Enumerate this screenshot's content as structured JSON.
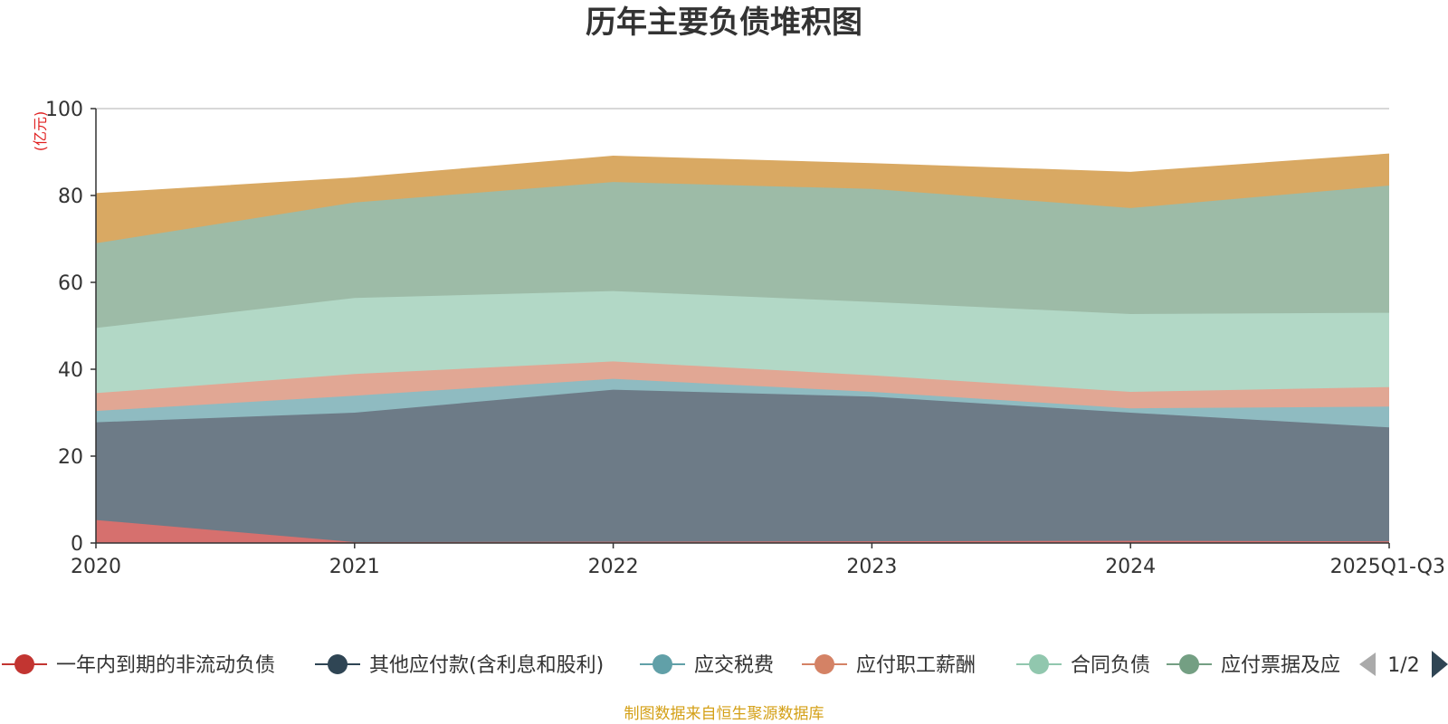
{
  "chart_data": {
    "type": "area",
    "stacked": true,
    "title": "历年主要负债堆积图",
    "unit": "(亿元)",
    "x": [
      "2020",
      "2021",
      "2022",
      "2023",
      "2024",
      "2025Q1-Q3"
    ],
    "ylim": [
      0,
      100
    ],
    "yticks": [
      0,
      20,
      40,
      60,
      80,
      100
    ],
    "grid": true,
    "legend_position": "bottom",
    "series": [
      {
        "name": "一年内到期的非流动负债",
        "color": "#c23531",
        "fill": "#d6706e",
        "values": [
          5.3,
          0.2,
          0.3,
          0.4,
          0.5,
          0.4
        ]
      },
      {
        "name": "其他应付款(含利息和股利)",
        "color": "#2f4554",
        "fill": "#6d7b87",
        "values": [
          22.5,
          29.8,
          35.0,
          33.3,
          29.5,
          26.2
        ]
      },
      {
        "name": "应交税费",
        "color": "#61a0a8",
        "fill": "#8fbbc1",
        "values": [
          2.6,
          3.9,
          2.5,
          1.1,
          1.0,
          4.8
        ]
      },
      {
        "name": "应付职工薪酬",
        "color": "#d48265",
        "fill": "#e1a794",
        "values": [
          4.1,
          5.0,
          4.0,
          3.8,
          3.8,
          4.5
        ]
      },
      {
        "name": "合同负债",
        "color": "#91c7ae",
        "fill": "#b2d8c6",
        "values": [
          15.0,
          17.5,
          16.2,
          16.9,
          17.9,
          17.1
        ]
      },
      {
        "name": "应付票据及应付账款",
        "color": "#749f83",
        "fill": "#9dbba7",
        "values": [
          19.5,
          22.0,
          25.1,
          26.0,
          24.4,
          29.3
        ]
      },
      {
        "name": "",
        "color": "#ca8622",
        "fill": "#d9a963",
        "values": [
          11.4,
          5.6,
          5.9,
          5.8,
          8.2,
          7.2
        ]
      }
    ]
  },
  "legend": {
    "items": [
      {
        "label": "一年内到期的非流动负债",
        "color": "#c23531"
      },
      {
        "label": "其他应付款(含利息和股利)",
        "color": "#2f4554"
      },
      {
        "label": "应交税费",
        "color": "#61a0a8"
      },
      {
        "label": "应付职工薪酬",
        "color": "#d48265"
      },
      {
        "label": "合同负债",
        "color": "#91c7ae"
      },
      {
        "label": "应付票据及应",
        "color": "#749f83"
      }
    ],
    "page": "1/2"
  },
  "source": "制图数据来自恒生聚源数据库"
}
